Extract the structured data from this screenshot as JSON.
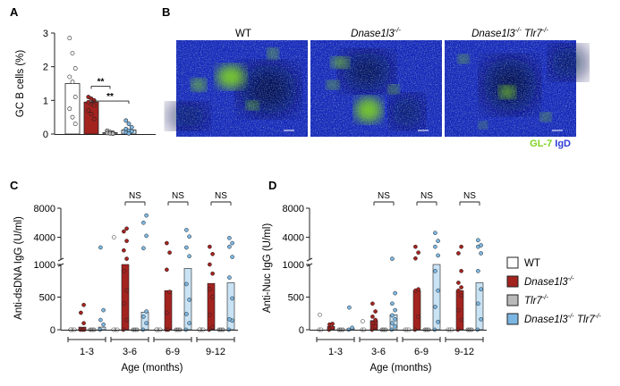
{
  "colors": {
    "wt": "#ffffff",
    "dnase": "#a3231f",
    "tlr7": "#b9b9b9",
    "double": "#7cb7e3",
    "double_bar": "#c9e3f5",
    "gl7": "#7ed321",
    "igd": "#2e3cd6",
    "axis": "#222222"
  },
  "panels": {
    "a": "A",
    "b": "B",
    "c": "C",
    "d": "D"
  },
  "legend": [
    {
      "label": "WT",
      "superscript": "",
      "key": "wt"
    },
    {
      "label": "Dnase1l3",
      "superscript": "-/-",
      "key": "dnase"
    },
    {
      "label": "Tlr7",
      "superscript": "-/-",
      "key": "tlr7"
    },
    {
      "label": "Dnase1l3",
      "superscript": "-/-",
      "label2": "Tlr7",
      "superscript2": "-/-",
      "key": "double"
    }
  ],
  "micrographs": {
    "titles": [
      {
        "label": "WT",
        "superscript": ""
      },
      {
        "label": "Dnase1l3",
        "superscript": "-/-"
      },
      {
        "label": "Dnase1l3",
        "superscript": "-/-",
        "label2": "Tlr7",
        "superscript2": "-/-"
      }
    ],
    "stain_gl7": "GL-7",
    "stain_igd": "IgD"
  },
  "chart_data": [
    {
      "panel": "A",
      "type": "bar",
      "ylabel": "GC B cells (%)",
      "ylim": [
        0,
        3
      ],
      "yticks": [
        "0",
        "1",
        "2",
        "3"
      ],
      "groups": [
        {
          "key": "wt",
          "mean": 1.5,
          "points": [
            2.85,
            2.4,
            1.95,
            1.7,
            1.55,
            1.1,
            0.75,
            0.5,
            0.3
          ]
        },
        {
          "key": "dnase",
          "mean": 0.95,
          "points": [
            1.1,
            1.05,
            1.0,
            0.95,
            0.9,
            0.85,
            0.7,
            0.6,
            0.45
          ]
        },
        {
          "key": "tlr7",
          "mean": 0.04,
          "points": [
            0.1,
            0.06,
            0.04,
            0.03,
            0.02,
            0.01
          ]
        },
        {
          "key": "double",
          "mean": 0.12,
          "points": [
            0.4,
            0.3,
            0.2,
            0.15,
            0.1,
            0.08,
            0.05,
            0.02
          ]
        }
      ],
      "significance": [
        {
          "from": 1,
          "to": 2,
          "label": "**",
          "y": 1.42
        },
        {
          "from": 1,
          "to": 3,
          "label": "**",
          "y": 0.98
        }
      ]
    },
    {
      "panel": "C",
      "type": "bar",
      "ylabel": "Anti-dsDNA IgG (U/ml)",
      "xlabel": "Age (months)",
      "categories": [
        "1-3",
        "3-6",
        "6-9",
        "9-12"
      ],
      "ybreak": {
        "lower": [
          0,
          1000
        ],
        "upper": [
          1000,
          8000
        ]
      },
      "lower_ticks": [
        "0",
        "500",
        "1000"
      ],
      "upper_ticks": [
        "4000",
        "8000"
      ],
      "significance_label": "NS",
      "significance_ages": [
        1,
        2,
        3
      ],
      "groups": {
        "wt": {
          "means": [
            0,
            0,
            0,
            0
          ],
          "points": [
            [
              0,
              0,
              0,
              0
            ],
            [
              4000,
              0,
              0,
              0
            ],
            [
              0,
              0,
              0,
              0
            ],
            [
              0,
              0,
              0,
              0
            ]
          ]
        },
        "dnase": {
          "means": [
            40,
            1000,
            600,
            710
          ],
          "points": [
            [
              0,
              0,
              0,
              100,
              260,
              380
            ],
            [
              0,
              150,
              400,
              600,
              900,
              1050,
              2200,
              3500,
              4800,
              5200
            ],
            [
              0,
              0,
              260,
              580,
              920,
              1900,
              3200
            ],
            [
              0,
              40,
              230,
              500,
              620,
              860,
              1000,
              1700,
              2700
            ]
          ]
        },
        "tlr7": {
          "means": [
            0,
            0,
            0,
            0
          ],
          "points": [
            [
              0,
              0,
              0
            ],
            [
              0,
              0,
              0
            ],
            [
              0,
              0,
              0
            ],
            [
              0,
              0,
              0
            ]
          ]
        },
        "double": {
          "means": [
            40,
            270,
            940,
            720
          ],
          "points": [
            [
              0,
              80,
              150,
              300,
              2600
            ],
            [
              0,
              100,
              200,
              280,
              2500,
              4200,
              6000,
              7000
            ],
            [
              0,
              100,
              240,
              460,
              700,
              1400,
              2600,
              4100,
              5000
            ],
            [
              0,
              140,
              160,
              480,
              800,
              1300,
              2700,
              3200,
              3900
            ]
          ]
        }
      }
    },
    {
      "panel": "D",
      "type": "bar",
      "ylabel": "Anti-Nuc IgG (U/ml)",
      "xlabel": "Age (months)",
      "categories": [
        "1-3",
        "3-6",
        "6-9",
        "9-12"
      ],
      "ybreak": {
        "lower": [
          0,
          1000
        ],
        "upper": [
          1000,
          8000
        ]
      },
      "lower_ticks": [
        "0",
        "500",
        "1000"
      ],
      "upper_ticks": [
        "4000",
        "8000"
      ],
      "significance_label": "NS",
      "significance_ages": [
        1,
        2,
        3
      ],
      "groups": {
        "wt": {
          "means": [
            0,
            0,
            0,
            0
          ],
          "points": [
            [
              0,
              0,
              230
            ],
            [
              0,
              0,
              130
            ],
            [
              0,
              0,
              0
            ],
            [
              0,
              0,
              0
            ]
          ]
        },
        "dnase": {
          "means": [
            50,
            140,
            600,
            600
          ],
          "points": [
            [
              0,
              30,
              80,
              90
            ],
            [
              0,
              50,
              100,
              150,
              200,
              280,
              400
            ],
            [
              0,
              200,
              600,
              620,
              1100,
              1900,
              2700
            ],
            [
              0,
              150,
              300,
              520,
              600,
              650,
              720,
              900,
              1800,
              2700
            ]
          ]
        },
        "tlr7": {
          "means": [
            0,
            0,
            0,
            0
          ],
          "points": [
            [
              0,
              0,
              0
            ],
            [
              0,
              0,
              0
            ],
            [
              0,
              0,
              0
            ],
            [
              0,
              0,
              0
            ]
          ]
        },
        "double": {
          "means": [
            20,
            230,
            1000,
            720
          ],
          "points": [
            [
              0,
              30,
              340
            ],
            [
              0,
              50,
              100,
              160,
              220,
              300,
              400,
              560,
              1050
            ],
            [
              0,
              120,
              350,
              600,
              900,
              1500,
              2700,
              3500,
              4600
            ],
            [
              0,
              160,
              400,
              620,
              900,
              1800,
              2700,
              2900,
              3600
            ]
          ]
        }
      }
    }
  ]
}
